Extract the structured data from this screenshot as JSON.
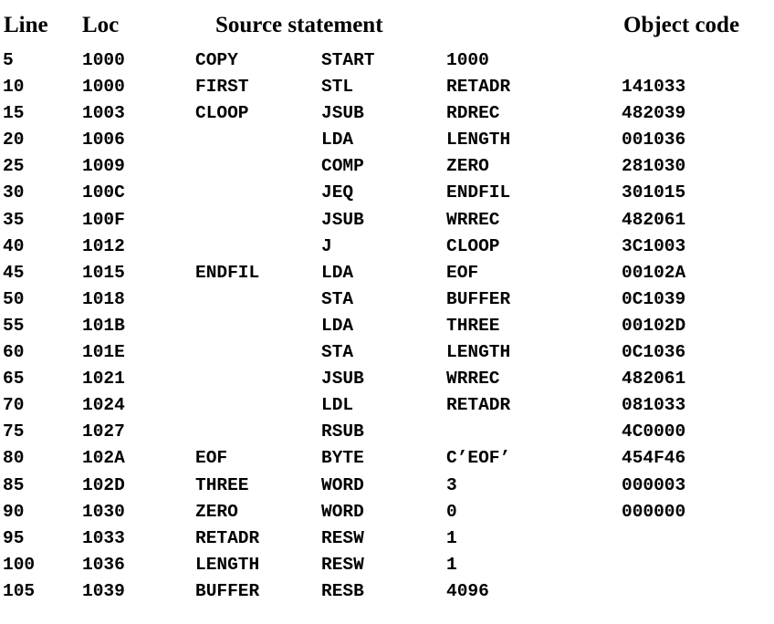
{
  "headers": {
    "line": "Line",
    "loc": "Loc",
    "source": "Source statement",
    "object": "Object code"
  },
  "rows": [
    {
      "line": "5",
      "loc": "1000",
      "label": "COPY",
      "op": "START",
      "operand": "1000",
      "obj": ""
    },
    {
      "line": "10",
      "loc": "1000",
      "label": "FIRST",
      "op": "STL",
      "operand": "RETADR",
      "obj": "141033"
    },
    {
      "line": "15",
      "loc": "1003",
      "label": "CLOOP",
      "op": "JSUB",
      "operand": "RDREC",
      "obj": "482039"
    },
    {
      "line": "20",
      "loc": "1006",
      "label": "",
      "op": "LDA",
      "operand": "LENGTH",
      "obj": "001036"
    },
    {
      "line": "25",
      "loc": "1009",
      "label": "",
      "op": "COMP",
      "operand": "ZERO",
      "obj": "281030"
    },
    {
      "line": "30",
      "loc": "100C",
      "label": "",
      "op": "JEQ",
      "operand": "ENDFIL",
      "obj": "301015"
    },
    {
      "line": "35",
      "loc": "100F",
      "label": "",
      "op": "JSUB",
      "operand": "WRREC",
      "obj": "482061"
    },
    {
      "line": "40",
      "loc": "1012",
      "label": "",
      "op": "J",
      "operand": "CLOOP",
      "obj": "3C1003"
    },
    {
      "line": "45",
      "loc": "1015",
      "label": "ENDFIL",
      "op": "LDA",
      "operand": "EOF",
      "obj": "00102A"
    },
    {
      "line": "50",
      "loc": "1018",
      "label": "",
      "op": "STA",
      "operand": "BUFFER",
      "obj": "0C1039"
    },
    {
      "line": "55",
      "loc": "101B",
      "label": "",
      "op": "LDA",
      "operand": "THREE",
      "obj": "00102D"
    },
    {
      "line": "60",
      "loc": "101E",
      "label": "",
      "op": "STA",
      "operand": "LENGTH",
      "obj": "0C1036"
    },
    {
      "line": "65",
      "loc": "1021",
      "label": "",
      "op": "JSUB",
      "operand": "WRREC",
      "obj": "482061"
    },
    {
      "line": "70",
      "loc": "1024",
      "label": "",
      "op": "LDL",
      "operand": "RETADR",
      "obj": "081033"
    },
    {
      "line": "75",
      "loc": "1027",
      "label": "",
      "op": "RSUB",
      "operand": "",
      "obj": "4C0000"
    },
    {
      "line": "80",
      "loc": "102A",
      "label": "EOF",
      "op": "BYTE",
      "operand": "C’EOF’",
      "obj": "454F46"
    },
    {
      "line": "85",
      "loc": "102D",
      "label": "THREE",
      "op": "WORD",
      "operand": "3",
      "obj": "000003"
    },
    {
      "line": "90",
      "loc": "1030",
      "label": "ZERO",
      "op": "WORD",
      "operand": "0",
      "obj": "000000"
    },
    {
      "line": "95",
      "loc": "1033",
      "label": "RETADR",
      "op": "RESW",
      "operand": "1",
      "obj": ""
    },
    {
      "line": "100",
      "loc": "1036",
      "label": "LENGTH",
      "op": "RESW",
      "operand": "1",
      "obj": ""
    },
    {
      "line": "105",
      "loc": "1039",
      "label": "BUFFER",
      "op": "RESB",
      "operand": "4096",
      "obj": ""
    }
  ]
}
